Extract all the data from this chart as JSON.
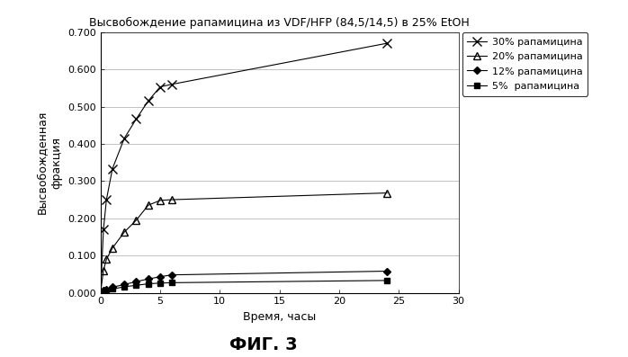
{
  "title": "Высвобождение рапамицина из VDF/HFP (84,5/14,5) в 25% EtOH",
  "xlabel": "Время, часы",
  "ylabel": "Высвобожденная\nфракция",
  "fig_label": "ФИГ. 3",
  "xlim": [
    0,
    30
  ],
  "ylim": [
    0.0,
    0.7
  ],
  "xticks": [
    0,
    5,
    10,
    15,
    20,
    25,
    30
  ],
  "yticks": [
    0.0,
    0.1,
    0.2,
    0.3,
    0.4,
    0.5,
    0.6,
    0.7
  ],
  "series": [
    {
      "label": "30% рапамицина",
      "marker": "x",
      "mfc": "none",
      "x": [
        0.0,
        0.25,
        0.5,
        1.0,
        2.0,
        3.0,
        4.0,
        5.0,
        6.0,
        24.0
      ],
      "y": [
        0.0,
        0.17,
        0.25,
        0.333,
        0.415,
        0.467,
        0.515,
        0.553,
        0.56,
        0.67
      ]
    },
    {
      "label": "20% рапамицина",
      "marker": "^",
      "mfc": "none",
      "x": [
        0.0,
        0.25,
        0.5,
        1.0,
        2.0,
        3.0,
        4.0,
        5.0,
        6.0,
        24.0
      ],
      "y": [
        0.0,
        0.06,
        0.09,
        0.12,
        0.163,
        0.195,
        0.235,
        0.248,
        0.25,
        0.268
      ]
    },
    {
      "label": "12% рапамицина",
      "marker": "D",
      "mfc": "#000000",
      "x": [
        0.0,
        0.25,
        0.5,
        1.0,
        2.0,
        3.0,
        4.0,
        5.0,
        6.0,
        24.0
      ],
      "y": [
        0.0,
        0.005,
        0.008,
        0.015,
        0.022,
        0.03,
        0.037,
        0.043,
        0.048,
        0.058
      ]
    },
    {
      "label": "5%  рапамицина",
      "marker": "s",
      "mfc": "#000000",
      "x": [
        0.0,
        0.25,
        0.5,
        1.0,
        2.0,
        3.0,
        4.0,
        5.0,
        6.0,
        24.0
      ],
      "y": [
        0.0,
        0.003,
        0.005,
        0.01,
        0.016,
        0.02,
        0.024,
        0.026,
        0.027,
        0.033
      ]
    }
  ],
  "background_color": "#ffffff",
  "grid_color": "#aaaaaa",
  "title_fontsize": 9,
  "label_fontsize": 9,
  "legend_fontsize": 8,
  "tick_fontsize": 8,
  "figlabel_fontsize": 14
}
